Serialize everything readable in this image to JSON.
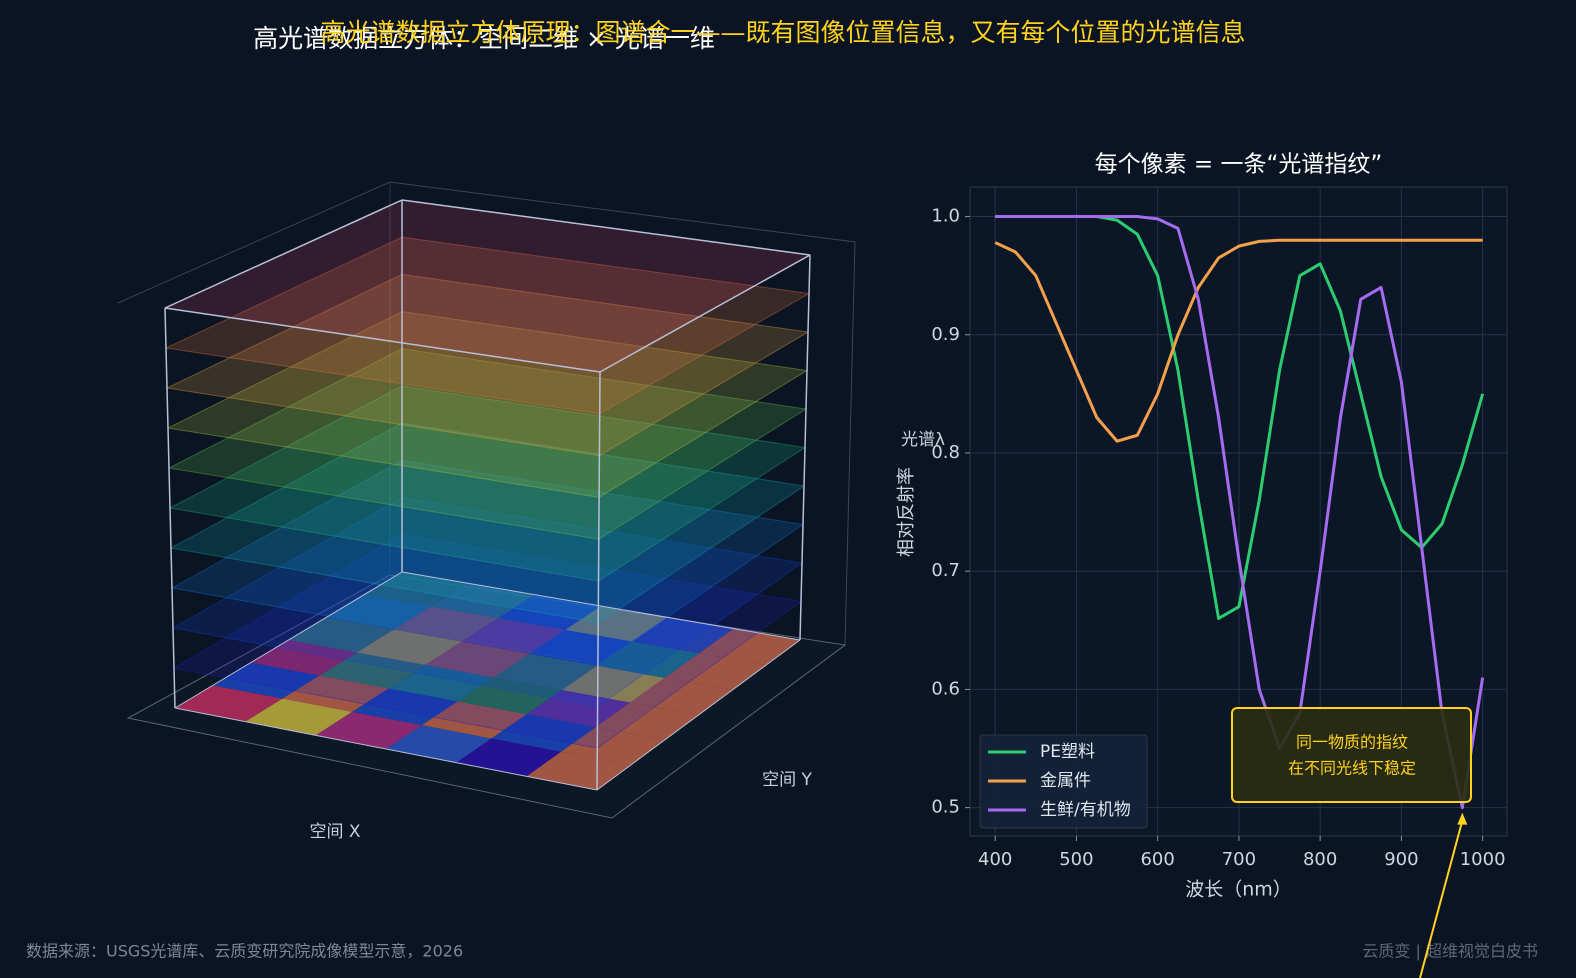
{
  "header": {
    "title": "高光谱数据立方体：空间二维 × 光谱一维",
    "subtitle": "高光谱数据立方体原理：图谱合一——既有图像位置信息，又有每个位置的光谱信息"
  },
  "cube": {
    "x_label": "空间 X",
    "y_label": "空间 Y",
    "z_label": "光谱λ"
  },
  "chart_data": {
    "type": "line",
    "title": "每个像素 = 一条“光谱指纹”",
    "x_label": "波长（nm）",
    "y_label": "相对反射率",
    "x": [
      400,
      425,
      450,
      475,
      500,
      525,
      550,
      575,
      600,
      625,
      650,
      675,
      700,
      725,
      750,
      775,
      800,
      825,
      850,
      875,
      900,
      925,
      950,
      975,
      1000
    ],
    "series": [
      {
        "name": "PE塑料",
        "color": "#2ecc71",
        "values": [
          1.0,
          1.0,
          1.0,
          1.0,
          1.0,
          1.0,
          0.997,
          0.985,
          0.95,
          0.87,
          0.76,
          0.66,
          0.67,
          0.76,
          0.87,
          0.95,
          0.96,
          0.92,
          0.85,
          0.78,
          0.735,
          0.72,
          0.74,
          0.79,
          0.85
        ]
      },
      {
        "name": "金属件",
        "color": "#f5a04a",
        "values": [
          0.978,
          0.97,
          0.95,
          0.91,
          0.87,
          0.83,
          0.81,
          0.815,
          0.85,
          0.9,
          0.94,
          0.965,
          0.975,
          0.979,
          0.98,
          0.98,
          0.98,
          0.98,
          0.98,
          0.98,
          0.98,
          0.98,
          0.98,
          0.98,
          0.98
        ]
      },
      {
        "name": "生鲜/有机物",
        "color": "#a66cf0",
        "values": [
          1.0,
          1.0,
          1.0,
          1.0,
          1.0,
          1.0,
          1.0,
          1.0,
          0.998,
          0.99,
          0.93,
          0.83,
          0.71,
          0.6,
          0.55,
          0.58,
          0.7,
          0.83,
          0.93,
          0.94,
          0.86,
          0.72,
          0.58,
          0.5,
          0.61
        ]
      }
    ],
    "xlim": [
      369,
      1030
    ],
    "ylim": [
      0.476,
      1.025
    ],
    "xticks": [
      400,
      500,
      600,
      700,
      800,
      900,
      1000
    ],
    "yticks": [
      0.5,
      0.6,
      0.7,
      0.8,
      0.9,
      {
        "value": 1.0,
        "label": "1.0"
      }
    ],
    "grid": true,
    "legend": "lower left",
    "annotation": {
      "text": [
        "同一物质的指纹",
        "在不同光线下稳定"
      ],
      "x": 975,
      "y": 0.5,
      "color": "#ffd21e"
    }
  },
  "footer": {
    "source": "数据来源：USGS光谱库、云质变研究院成像模型示意，2026",
    "brand": "云质变 | 超维视觉白皮书"
  }
}
